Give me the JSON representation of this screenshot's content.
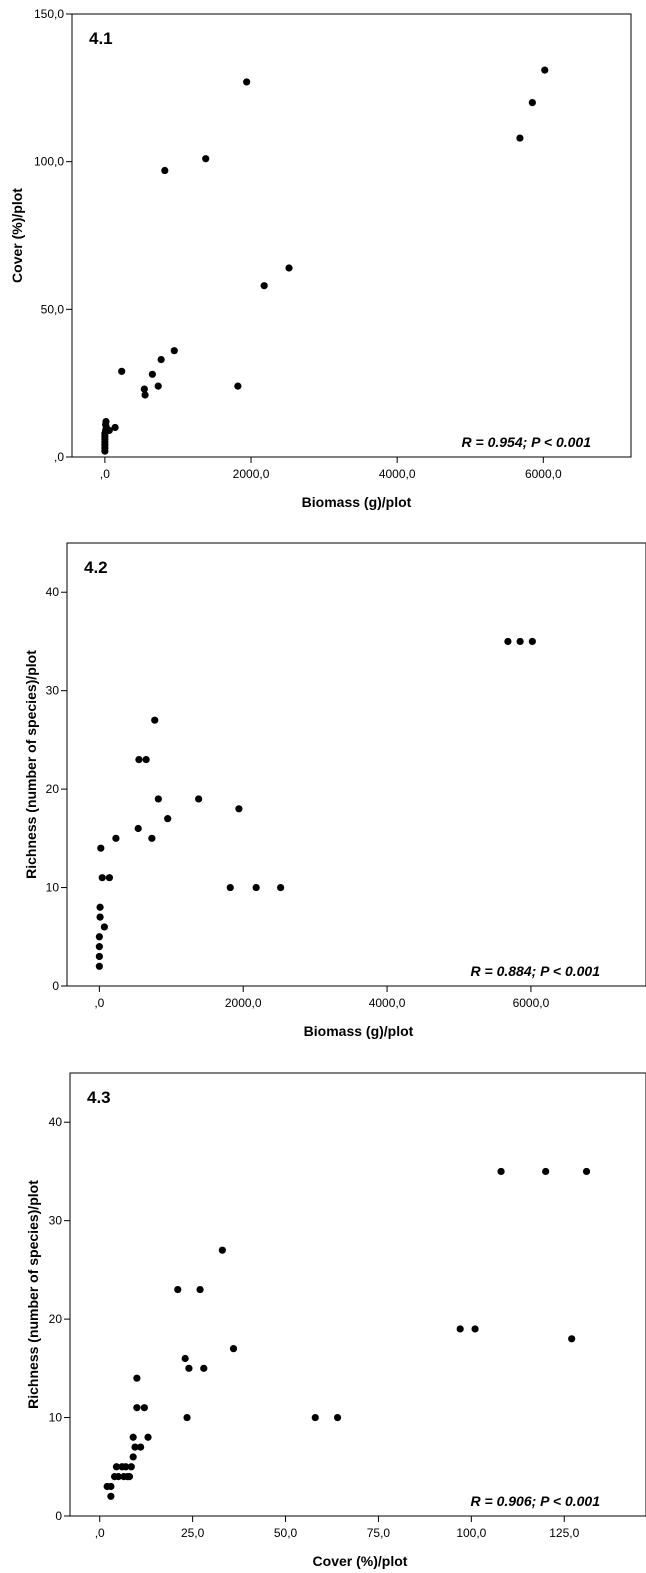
{
  "chart_data": [
    {
      "type": "scatter",
      "panel_label": "4.1",
      "xlabel": "Biomass (g)/plot",
      "ylabel": "Cover (%)/plot",
      "annotation": "R = 0.954; P < 0.001",
      "xlim": [
        -450,
        7200
      ],
      "ylim": [
        0,
        150
      ],
      "x_ticks": [
        0,
        2000,
        4000,
        6000
      ],
      "x_tick_labels": [
        ",0",
        "2000,0",
        "4000,0",
        "6000,0"
      ],
      "y_ticks": [
        0,
        50,
        100,
        150
      ],
      "y_tick_labels": [
        ",0",
        "50,0",
        "100,0",
        "150,0"
      ],
      "points": [
        {
          "x": 0,
          "y": 2
        },
        {
          "x": 0,
          "y": 3
        },
        {
          "x": 0,
          "y": 4
        },
        {
          "x": 0,
          "y": 5
        },
        {
          "x": 0,
          "y": 6
        },
        {
          "x": 0,
          "y": 7
        },
        {
          "x": 0,
          "y": 8
        },
        {
          "x": 10,
          "y": 9
        },
        {
          "x": 10,
          "y": 11
        },
        {
          "x": 15,
          "y": 12
        },
        {
          "x": 20,
          "y": 10
        },
        {
          "x": 60,
          "y": 9
        },
        {
          "x": 140,
          "y": 10
        },
        {
          "x": 230,
          "y": 29
        },
        {
          "x": 540,
          "y": 23
        },
        {
          "x": 550,
          "y": 21
        },
        {
          "x": 650,
          "y": 28
        },
        {
          "x": 730,
          "y": 24
        },
        {
          "x": 770,
          "y": 33
        },
        {
          "x": 820,
          "y": 97
        },
        {
          "x": 950,
          "y": 36
        },
        {
          "x": 1380,
          "y": 101
        },
        {
          "x": 1820,
          "y": 24
        },
        {
          "x": 1940,
          "y": 127
        },
        {
          "x": 2180,
          "y": 58
        },
        {
          "x": 2520,
          "y": 64
        },
        {
          "x": 5680,
          "y": 108
        },
        {
          "x": 5850,
          "y": 120
        },
        {
          "x": 6020,
          "y": 131
        }
      ]
    },
    {
      "type": "scatter",
      "panel_label": "4.2",
      "xlabel": "Biomass (g)/plot",
      "ylabel": "Richness (number of species)/plot",
      "annotation": "R = 0.884; P < 0.001",
      "xlim": [
        -450,
        7600
      ],
      "ylim": [
        0,
        45
      ],
      "x_ticks": [
        0,
        2000,
        4000,
        6000
      ],
      "x_tick_labels": [
        ",0",
        "2000,0",
        "4000,0",
        "6000,0"
      ],
      "y_ticks": [
        0,
        10,
        20,
        30,
        40
      ],
      "y_tick_labels": [
        "0",
        "10",
        "20",
        "30",
        "40"
      ],
      "points": [
        {
          "x": 0,
          "y": 2
        },
        {
          "x": 0,
          "y": 3
        },
        {
          "x": 0,
          "y": 4
        },
        {
          "x": 0,
          "y": 5
        },
        {
          "x": 10,
          "y": 7
        },
        {
          "x": 10,
          "y": 8
        },
        {
          "x": 20,
          "y": 14
        },
        {
          "x": 40,
          "y": 11
        },
        {
          "x": 70,
          "y": 6
        },
        {
          "x": 140,
          "y": 11
        },
        {
          "x": 230,
          "y": 15
        },
        {
          "x": 540,
          "y": 16
        },
        {
          "x": 550,
          "y": 23
        },
        {
          "x": 650,
          "y": 23
        },
        {
          "x": 730,
          "y": 15
        },
        {
          "x": 770,
          "y": 27
        },
        {
          "x": 820,
          "y": 19
        },
        {
          "x": 950,
          "y": 17
        },
        {
          "x": 1380,
          "y": 19
        },
        {
          "x": 1820,
          "y": 10
        },
        {
          "x": 1940,
          "y": 18
        },
        {
          "x": 2180,
          "y": 10
        },
        {
          "x": 2520,
          "y": 10
        },
        {
          "x": 5680,
          "y": 35
        },
        {
          "x": 5850,
          "y": 35
        },
        {
          "x": 6020,
          "y": 35
        }
      ]
    },
    {
      "type": "scatter",
      "panel_label": "4.3",
      "xlabel": "Cover (%)/plot",
      "ylabel": "Richness (number of species)/plot",
      "annotation": "R = 0.906; P < 0.001",
      "xlim": [
        -8,
        147
      ],
      "ylim": [
        0,
        45
      ],
      "x_ticks": [
        0,
        25,
        50,
        75,
        100,
        125
      ],
      "x_tick_labels": [
        ",0",
        "25,0",
        "50,0",
        "75,0",
        "100,0",
        "125,0"
      ],
      "y_ticks": [
        0,
        10,
        20,
        30,
        40
      ],
      "y_tick_labels": [
        "0",
        "10",
        "20",
        "30",
        "40"
      ],
      "points": [
        {
          "x": 2,
          "y": 3
        },
        {
          "x": 3,
          "y": 3
        },
        {
          "x": 3,
          "y": 2
        },
        {
          "x": 4,
          "y": 4
        },
        {
          "x": 4.5,
          "y": 5
        },
        {
          "x": 5,
          "y": 4
        },
        {
          "x": 6,
          "y": 5
        },
        {
          "x": 6.5,
          "y": 4
        },
        {
          "x": 7,
          "y": 5
        },
        {
          "x": 7.5,
          "y": 4
        },
        {
          "x": 8,
          "y": 4
        },
        {
          "x": 8.5,
          "y": 5
        },
        {
          "x": 9,
          "y": 6
        },
        {
          "x": 9,
          "y": 8
        },
        {
          "x": 9.5,
          "y": 7
        },
        {
          "x": 10,
          "y": 11
        },
        {
          "x": 10,
          "y": 14
        },
        {
          "x": 11,
          "y": 7
        },
        {
          "x": 12,
          "y": 11
        },
        {
          "x": 13,
          "y": 8
        },
        {
          "x": 21,
          "y": 23
        },
        {
          "x": 23,
          "y": 16
        },
        {
          "x": 23.5,
          "y": 10
        },
        {
          "x": 24,
          "y": 15
        },
        {
          "x": 27,
          "y": 23
        },
        {
          "x": 28,
          "y": 15
        },
        {
          "x": 33,
          "y": 27
        },
        {
          "x": 36,
          "y": 17
        },
        {
          "x": 58,
          "y": 10
        },
        {
          "x": 64,
          "y": 10
        },
        {
          "x": 97,
          "y": 19
        },
        {
          "x": 101,
          "y": 19
        },
        {
          "x": 108,
          "y": 35
        },
        {
          "x": 120,
          "y": 35
        },
        {
          "x": 127,
          "y": 18
        },
        {
          "x": 131,
          "y": 35
        }
      ]
    }
  ]
}
